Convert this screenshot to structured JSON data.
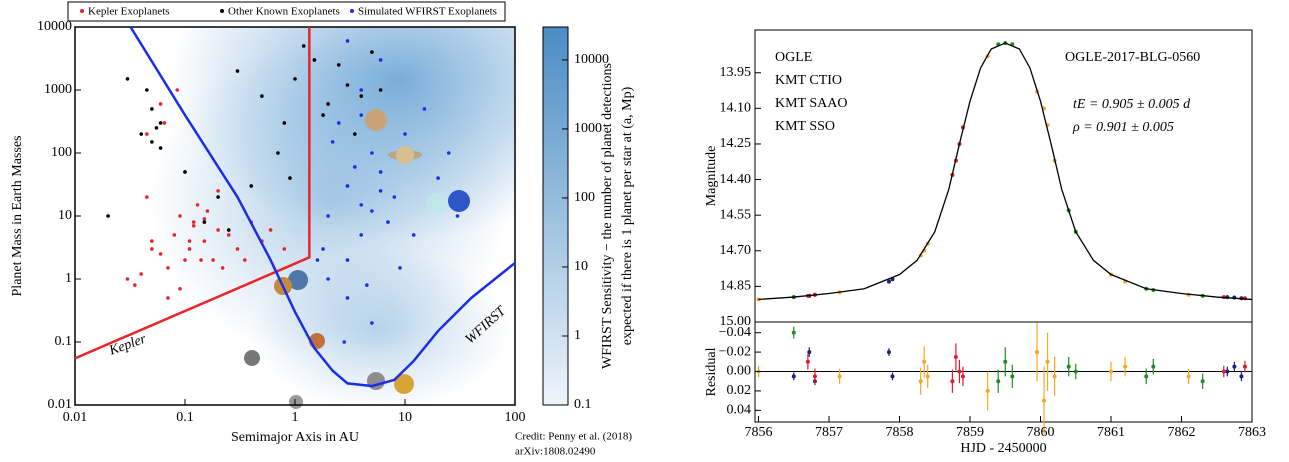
{
  "chart_data": [
    {
      "type": "scatter",
      "xlabel": "Semimajor Axis in AU",
      "ylabel": "Planet Mass in Earth Masses",
      "xscale": "log",
      "yscale": "log",
      "xlim": [
        0.01,
        100
      ],
      "ylim": [
        0.01,
        10000
      ],
      "xticks": [
        0.01,
        0.1,
        1,
        10,
        100
      ],
      "yticks": [
        0.01,
        0.1,
        1,
        10,
        100,
        1000,
        10000
      ],
      "legend": "top",
      "series": [
        {
          "name": "Kepler Exoplanets",
          "color": "#e8262a",
          "x": [
            0.05,
            0.08,
            0.1,
            0.12,
            0.15,
            0.2,
            0.07,
            0.09,
            0.11,
            0.06,
            0.04,
            0.13,
            0.18,
            0.25,
            0.3,
            0.4,
            0.5,
            0.035,
            0.045,
            0.065,
            0.085,
            0.14,
            0.16,
            0.22,
            0.09,
            0.1,
            0.12,
            0.05,
            0.07,
            0.2,
            0.6,
            0.8,
            0.03,
            0.11,
            0.15,
            0.045,
            0.06,
            0.35
          ],
          "values": [
            3,
            5,
            2,
            8,
            4,
            6,
            1.5,
            10,
            3,
            2.5,
            1.2,
            15,
            2,
            5,
            3,
            8,
            4,
            0.8,
            20,
            300,
            1000,
            2,
            12,
            1.5,
            0.7,
            50,
            7,
            4,
            0.5,
            25,
            6,
            3,
            1,
            4,
            9,
            200,
            600,
            2
          ]
        },
        {
          "name": "Other Known Exoplanets",
          "color": "#000000",
          "x": [
            0.04,
            0.05,
            0.06,
            0.045,
            0.05,
            0.3,
            0.5,
            1,
            1.5,
            2,
            3,
            0.8,
            1.2,
            2.5,
            4,
            0.1,
            0.2,
            0.03,
            0.7,
            5,
            0.02,
            0.15,
            1.8,
            0.9,
            3.5,
            0.055,
            0.06,
            0.25,
            6,
            0.4
          ],
          "values": [
            200,
            150,
            300,
            1000,
            500,
            2000,
            800,
            1500,
            3000,
            600,
            1200,
            300,
            5000,
            2500,
            800,
            50,
            20,
            1500,
            100,
            4000,
            10,
            8,
            400,
            40,
            200,
            250,
            120,
            6,
            1000,
            30
          ]
        },
        {
          "name": "Simulated WFIRST Exoplanets",
          "color": "#1a2ee8",
          "x": [
            2,
            3,
            4,
            5,
            6,
            3,
            2.5,
            4,
            8,
            10,
            15,
            20,
            3,
            5,
            2,
            1.8,
            7,
            4,
            3.5,
            6,
            12,
            25,
            2.2,
            4.5,
            9,
            3,
            5,
            1.6,
            2.8,
            4,
            30,
            6
          ],
          "values": [
            10,
            30,
            5,
            100,
            50,
            2,
            300,
            1000,
            20,
            200,
            500,
            40,
            0.5,
            0.2,
            1,
            3,
            8,
            15,
            60,
            3000,
            5,
            100,
            150,
            0.8,
            1.5,
            6000,
            12,
            2,
            0.1,
            400,
            10,
            25
          ]
        }
      ],
      "boundaries": [
        {
          "label": "Kepler",
          "color": "#e8262a",
          "x": [
            0.01,
            1.35,
            1.35
          ],
          "values": [
            0.055,
            2.2,
            10000
          ]
        },
        {
          "label": "WFIRST",
          "color": "#1a2ee8",
          "x": [
            0.032,
            0.1,
            0.3,
            0.6,
            1,
            1.5,
            2.2,
            3,
            5,
            8,
            12,
            20,
            40,
            100
          ],
          "values": [
            10000,
            400,
            20,
            2,
            0.3,
            0.08,
            0.035,
            0.022,
            0.02,
            0.025,
            0.05,
            0.15,
            0.5,
            1.8
          ]
        }
      ],
      "colorbar": {
        "label": [
          "WFIRST Sensitivity − the number of planet detections",
          "expected if there is 1 planet per star at (a, Mp)"
        ],
        "clim": [
          0.1,
          30000
        ],
        "ticks": [
          0.1,
          1,
          10,
          100,
          1000,
          10000
        ],
        "color": "#4a8cc4"
      },
      "credit": [
        "Credit: Penny et al. (2018)",
        "arXiv:1808.02490"
      ]
    },
    {
      "type": "lightcurve",
      "title": "OGLE-2017-BLG-0560",
      "annotations": [
        "tE = 0.905 ± 0.005 d",
        "ρ = 0.901 ± 0.005"
      ],
      "xlabel": "HJD - 2450000",
      "ylabel": "Magnitude",
      "residual_ylabel": "Residual",
      "xlim": [
        7855.95,
        7863.0
      ],
      "xticks": [
        7856,
        7857,
        7858,
        7859,
        7860,
        7861,
        7862,
        7863
      ],
      "ylim": [
        13.77,
        15.0
      ],
      "y_inverted": true,
      "yticks": [
        13.95,
        {
          "value": 14.1,
          "label": "14.10"
        },
        14.25,
        {
          "value": 14.4,
          "label": "14.40"
        },
        14.55,
        {
          "value": 14.7,
          "label": "14.70"
        },
        14.85,
        {
          "value": 15.0,
          "label": "15.00"
        }
      ],
      "residual_ylim": [
        -0.051,
        0.052
      ],
      "residual_yticks": [
        {
          "value": -0.04,
          "label": "−0.04"
        },
        {
          "value": -0.02,
          "label": "−0.02"
        },
        {
          "value": 0,
          "label": "0.00"
        },
        0.02,
        0.04
      ],
      "model": {
        "color": "#000000",
        "x": [
          7856.0,
          7856.5,
          7857.0,
          7857.5,
          7858.0,
          7858.25,
          7858.5,
          7858.7,
          7858.85,
          7859.0,
          7859.15,
          7859.3,
          7859.5,
          7859.7,
          7859.85,
          7860.0,
          7860.15,
          7860.3,
          7860.5,
          7860.75,
          7861.0,
          7861.5,
          7862.0,
          7862.5,
          7863.0
        ],
        "values": [
          14.905,
          14.895,
          14.88,
          14.86,
          14.8,
          14.74,
          14.62,
          14.44,
          14.25,
          14.07,
          13.93,
          13.85,
          13.825,
          13.85,
          13.93,
          14.07,
          14.25,
          14.44,
          14.62,
          14.74,
          14.8,
          14.86,
          14.88,
          14.895,
          14.905
        ]
      },
      "series": [
        {
          "name": "OGLE",
          "color": "#1a237e",
          "x": [
            7856.5,
            7856.72,
            7856.8,
            7857.85,
            7857.9,
            7862.65,
            7862.75,
            7862.85
          ],
          "values": [
            14.895,
            14.89,
            14.885,
            14.83,
            14.82,
            14.895,
            14.897,
            14.9
          ],
          "residuals": [
            0.005,
            -0.02,
            0.01,
            -0.02,
            0.005,
            0.0,
            -0.005,
            0.005
          ],
          "residual_errors": [
            0.004,
            0.005,
            0.004,
            0.004,
            0.004,
            0.005,
            0.005,
            0.005
          ]
        },
        {
          "name": "KMT CTIO",
          "color": "#e8192c",
          "x": [
            7856.7,
            7856.8,
            7858.75,
            7858.8,
            7858.85,
            7858.9,
            7862.6,
            7862.9
          ],
          "values": [
            14.89,
            14.885,
            14.38,
            14.32,
            14.25,
            14.18,
            14.895,
            14.9
          ],
          "residuals": [
            -0.01,
            0.005,
            0.01,
            -0.015,
            0.0,
            0.005,
            0.0,
            -0.005
          ],
          "residual_errors": [
            0.008,
            0.008,
            0.012,
            0.014,
            0.012,
            0.01,
            0.006,
            0.006
          ]
        },
        {
          "name": "KMT SAAO",
          "color": "#1f8a24",
          "x": [
            7856.5,
            7859.4,
            7859.5,
            7859.6,
            7860.4,
            7860.5,
            7861.5,
            7861.6,
            7862.3
          ],
          "values": [
            14.895,
            13.83,
            13.825,
            13.83,
            14.53,
            14.62,
            14.86,
            14.865,
            14.89
          ],
          "residuals": [
            -0.04,
            0.01,
            -0.01,
            0.005,
            -0.005,
            0.0,
            0.005,
            -0.005,
            0.01
          ],
          "residual_errors": [
            0.006,
            0.012,
            0.015,
            0.012,
            0.01,
            0.008,
            0.008,
            0.008,
            0.008
          ]
        },
        {
          "name": "KMT SSO",
          "color": "#f5a623",
          "x": [
            7856.0,
            7857.15,
            7858.3,
            7858.35,
            7858.4,
            7859.25,
            7859.95,
            7860.05,
            7860.1,
            7860.2,
            7861.0,
            7861.2,
            7862.1
          ],
          "values": [
            14.905,
            14.875,
            14.72,
            14.7,
            14.67,
            13.88,
            14.03,
            14.1,
            14.17,
            14.32,
            14.8,
            14.83,
            14.885
          ],
          "residuals": [
            0.0,
            0.005,
            0.01,
            -0.01,
            0.005,
            0.02,
            -0.02,
            0.03,
            -0.01,
            0.005,
            0.0,
            -0.005,
            0.005
          ],
          "residual_errors": [
            0.006,
            0.008,
            0.014,
            0.016,
            0.012,
            0.02,
            0.03,
            0.035,
            0.03,
            0.02,
            0.01,
            0.01,
            0.008
          ]
        }
      ]
    }
  ]
}
